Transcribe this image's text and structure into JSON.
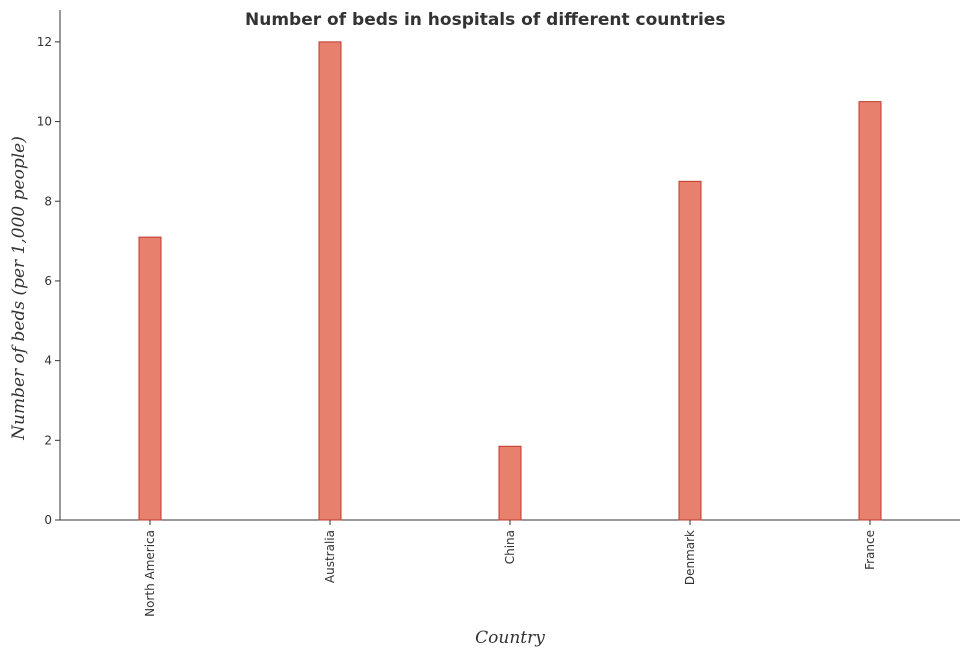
{
  "chart_data": {
    "type": "bar",
    "title": "Number of beds in hospitals of different countries",
    "xlabel": "Country",
    "ylabel": "Number of beds (per 1,000 people)",
    "categories": [
      "North America",
      "Australia",
      "China",
      "Denmark",
      "France"
    ],
    "values": [
      7.1,
      12.0,
      1.85,
      8.5,
      10.5
    ],
    "ylim": [
      0,
      12.8
    ],
    "yticks": [
      0,
      2,
      4,
      6,
      8,
      10,
      12
    ],
    "grid": false,
    "bar_color": "#e8806e",
    "bar_edge_color": "#c0392b"
  }
}
